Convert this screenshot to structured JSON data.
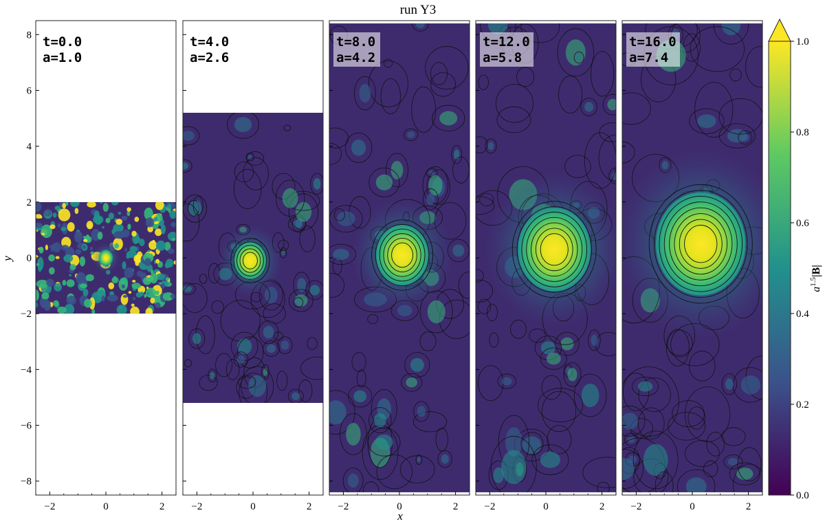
{
  "chart_data": {
    "type": "heatmap",
    "title": "run Y3",
    "xlabel": "x",
    "ylabel": "y",
    "xlim": [
      -2.5,
      2.5
    ],
    "ylim": [
      -8.5,
      8.5
    ],
    "x_ticks": [
      -2,
      0,
      2
    ],
    "y_ticks": [
      -8,
      -6,
      -4,
      -2,
      0,
      2,
      4,
      6,
      8
    ],
    "colorbar": {
      "label": "a^{1.5}|B|",
      "range": [
        0.0,
        1.0
      ],
      "ticks": [
        0.0,
        0.2,
        0.4,
        0.6,
        0.8,
        1.0
      ],
      "extend": "max",
      "colormap": "viridis",
      "colors": [
        "#440154",
        "#3b528b",
        "#21918c",
        "#5ec962",
        "#fde725"
      ]
    },
    "panels": [
      {
        "time_label": "t=0.0",
        "scale_label": "a=1.0",
        "y_extent": [
          -2.0,
          2.0
        ],
        "contours": false,
        "core_radius": 0.25,
        "core_center": [
          0.0,
          0.0
        ]
      },
      {
        "time_label": "t=4.0",
        "scale_label": "a=2.6",
        "y_extent": [
          -5.2,
          5.2
        ],
        "contours": true,
        "core_radius": 0.6,
        "core_center": [
          -0.1,
          -0.1
        ]
      },
      {
        "time_label": "t=8.0",
        "scale_label": "a=4.2",
        "y_extent": [
          -8.4,
          8.4
        ],
        "contours": true,
        "core_radius": 0.95,
        "core_center": [
          0.1,
          0.1
        ]
      },
      {
        "time_label": "t=12.0",
        "scale_label": "a=5.8",
        "y_extent": [
          -8.4,
          8.4
        ],
        "contours": true,
        "core_radius": 1.3,
        "core_center": [
          0.3,
          0.3
        ]
      },
      {
        "time_label": "t=16.0",
        "scale_label": "a=7.4",
        "y_extent": [
          -8.4,
          8.4
        ],
        "contours": true,
        "core_radius": 1.6,
        "core_center": [
          0.3,
          0.5
        ]
      }
    ]
  }
}
